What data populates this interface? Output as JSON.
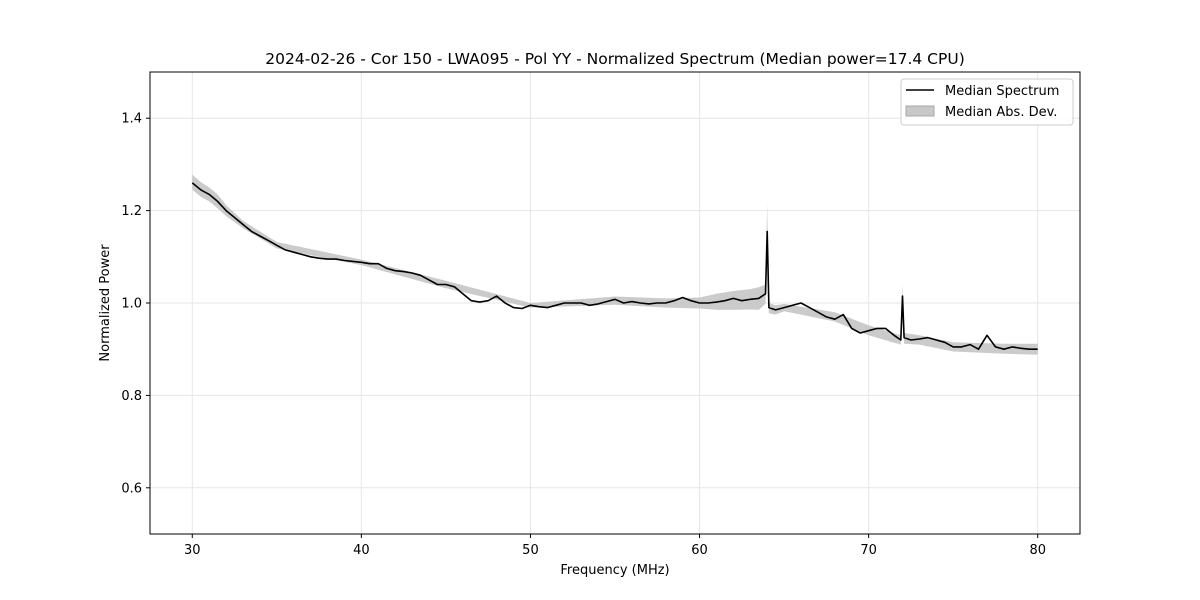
{
  "chart_data": {
    "type": "line",
    "title": "2024-02-26 - Cor 150 - LWA095 - Pol YY - Normalized Spectrum (Median power=17.4 CPU)",
    "xlabel": "Frequency (MHz)",
    "ylabel": "Normalized Power",
    "xlim": [
      27.5,
      82.5
    ],
    "ylim": [
      0.5,
      1.5
    ],
    "xticks": [
      30,
      40,
      50,
      60,
      70,
      80
    ],
    "yticks": [
      0.6,
      0.8,
      1.0,
      1.2,
      1.4
    ],
    "xtick_labels": [
      "30",
      "40",
      "50",
      "60",
      "70",
      "80"
    ],
    "ytick_labels": [
      "0.6",
      "0.8",
      "1.0",
      "1.2",
      "1.4"
    ],
    "grid": true,
    "legend_position": "top-right",
    "series": [
      {
        "name": "Median Spectrum",
        "color": "#000000",
        "x": [
          30.0,
          30.5,
          31.0,
          31.5,
          32.0,
          32.5,
          33.0,
          33.5,
          34.0,
          34.5,
          35.0,
          35.5,
          36.0,
          36.5,
          37.0,
          37.5,
          38.0,
          38.5,
          39.0,
          39.5,
          40.0,
          40.5,
          41.0,
          41.5,
          42.0,
          42.5,
          43.0,
          43.5,
          44.0,
          44.5,
          45.0,
          45.5,
          46.0,
          46.5,
          47.0,
          47.5,
          48.0,
          48.5,
          49.0,
          49.5,
          50.0,
          50.5,
          51.0,
          51.5,
          52.0,
          52.5,
          53.0,
          53.5,
          54.0,
          54.5,
          55.0,
          55.5,
          56.0,
          56.5,
          57.0,
          57.5,
          58.0,
          58.5,
          59.0,
          59.5,
          60.0,
          60.5,
          61.0,
          61.5,
          62.0,
          62.5,
          63.0,
          63.5,
          63.9,
          64.0,
          64.1,
          64.5,
          65.0,
          65.5,
          66.0,
          66.5,
          67.0,
          67.5,
          68.0,
          68.5,
          69.0,
          69.5,
          70.0,
          70.5,
          71.0,
          71.5,
          71.9,
          72.0,
          72.1,
          72.5,
          73.0,
          73.5,
          74.0,
          74.5,
          75.0,
          75.5,
          76.0,
          76.5,
          77.0,
          77.5,
          78.0,
          78.5,
          79.0,
          79.5,
          80.0
        ],
        "y": [
          1.26,
          1.245,
          1.235,
          1.22,
          1.2,
          1.185,
          1.17,
          1.155,
          1.145,
          1.135,
          1.125,
          1.115,
          1.11,
          1.105,
          1.1,
          1.097,
          1.095,
          1.095,
          1.092,
          1.09,
          1.088,
          1.085,
          1.085,
          1.075,
          1.07,
          1.068,
          1.065,
          1.06,
          1.05,
          1.04,
          1.04,
          1.035,
          1.02,
          1.005,
          1.002,
          1.005,
          1.015,
          1.0,
          0.99,
          0.988,
          0.995,
          0.992,
          0.99,
          0.995,
          1.0,
          1.0,
          1.0,
          0.995,
          0.998,
          1.003,
          1.008,
          1.0,
          1.003,
          1.0,
          0.998,
          1.0,
          1.0,
          1.005,
          1.012,
          1.005,
          1.0,
          1.0,
          1.002,
          1.005,
          1.01,
          1.005,
          1.008,
          1.01,
          1.02,
          1.155,
          0.99,
          0.985,
          0.99,
          0.995,
          1.0,
          0.99,
          0.98,
          0.97,
          0.965,
          0.975,
          0.945,
          0.935,
          0.94,
          0.945,
          0.945,
          0.93,
          0.92,
          1.015,
          0.925,
          0.92,
          0.922,
          0.925,
          0.92,
          0.915,
          0.905,
          0.905,
          0.91,
          0.9,
          0.93,
          0.905,
          0.9,
          0.905,
          0.902,
          0.9,
          0.9
        ]
      },
      {
        "name": "Median Abs. Dev.",
        "color": "#c8c8c8",
        "type": "band",
        "x": [
          30.0,
          30.5,
          31.0,
          31.5,
          32.0,
          32.5,
          33.0,
          35.0,
          40.0,
          45.0,
          50.0,
          55.0,
          58.0,
          60.0,
          61.0,
          62.0,
          63.0,
          63.5,
          63.9,
          64.0,
          64.1,
          64.5,
          65.0,
          68.0,
          70.0,
          71.9,
          72.0,
          72.1,
          73.0,
          75.0,
          78.0,
          80.0
        ],
        "upper": [
          1.278,
          1.262,
          1.25,
          1.235,
          1.212,
          1.195,
          1.178,
          1.132,
          1.094,
          1.048,
          1.0,
          1.014,
          1.01,
          1.012,
          1.02,
          1.026,
          1.03,
          1.034,
          1.04,
          1.215,
          1.0,
          0.995,
          0.998,
          0.98,
          0.952,
          0.93,
          1.04,
          0.935,
          0.93,
          0.915,
          0.912,
          0.912
        ],
        "lower": [
          1.245,
          1.23,
          1.22,
          1.205,
          1.188,
          1.175,
          1.162,
          1.118,
          1.082,
          1.032,
          0.99,
          0.996,
          0.99,
          0.988,
          0.985,
          0.985,
          0.986,
          0.985,
          0.998,
          1.1,
          0.978,
          0.975,
          0.982,
          0.96,
          0.93,
          0.91,
          0.99,
          0.912,
          0.91,
          0.895,
          0.89,
          0.888
        ]
      }
    ]
  }
}
